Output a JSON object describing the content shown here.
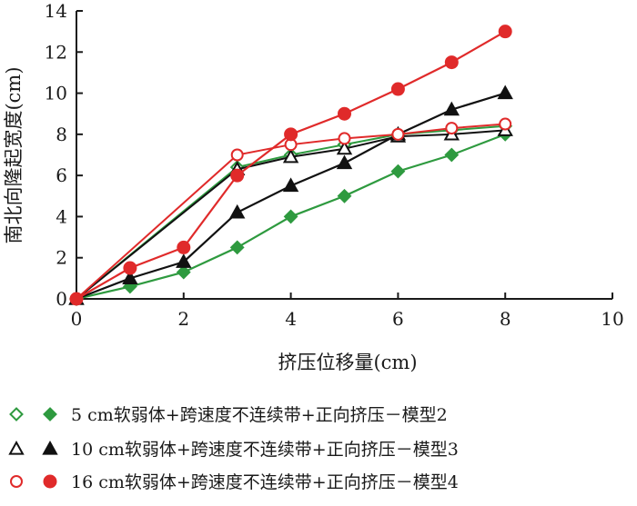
{
  "chart_data": {
    "type": "line",
    "xlabel": "挤压位移量(cm)",
    "ylabel": "南北向隆起宽度(cm)",
    "xlim": [
      0,
      10
    ],
    "ylim": [
      0,
      14
    ],
    "x_ticks": [
      "0",
      "2",
      "4",
      "6",
      "8",
      "10"
    ],
    "y_ticks": [
      "0",
      "2",
      "4",
      "6",
      "8",
      "10",
      "12",
      "14"
    ],
    "grid": false,
    "legend_position": "bottom",
    "series": [
      {
        "name": "5 cm软弱体+跨速度不连续带+正向挤压－模型2",
        "marker": "diamond",
        "color": "#2e9a3f",
        "open_points": [
          {
            "x": 0,
            "y": 0
          },
          {
            "x": 3,
            "y": 6.4
          },
          {
            "x": 4,
            "y": 7.0
          },
          {
            "x": 5,
            "y": 7.5
          },
          {
            "x": 6,
            "y": 8.0
          },
          {
            "x": 7,
            "y": 8.2
          },
          {
            "x": 8,
            "y": 8.4
          }
        ],
        "filled_points": [
          {
            "x": 0,
            "y": 0
          },
          {
            "x": 1,
            "y": 0.6
          },
          {
            "x": 2,
            "y": 1.3
          },
          {
            "x": 3,
            "y": 2.5
          },
          {
            "x": 4,
            "y": 4.0
          },
          {
            "x": 5,
            "y": 5.0
          },
          {
            "x": 6,
            "y": 6.2
          },
          {
            "x": 7,
            "y": 7.0
          },
          {
            "x": 8,
            "y": 8.0
          }
        ]
      },
      {
        "name": "10 cm软弱体+跨速度不连续带+正向挤压－模型3",
        "marker": "triangle",
        "color": "#111111",
        "open_points": [
          {
            "x": 0,
            "y": 0
          },
          {
            "x": 3,
            "y": 6.3
          },
          {
            "x": 4,
            "y": 6.9
          },
          {
            "x": 5,
            "y": 7.3
          },
          {
            "x": 6,
            "y": 7.9
          },
          {
            "x": 7,
            "y": 8.0
          },
          {
            "x": 8,
            "y": 8.2
          }
        ],
        "filled_points": [
          {
            "x": 0,
            "y": 0
          },
          {
            "x": 1,
            "y": 1.0
          },
          {
            "x": 2,
            "y": 1.8
          },
          {
            "x": 3,
            "y": 4.2
          },
          {
            "x": 4,
            "y": 5.5
          },
          {
            "x": 5,
            "y": 6.6
          },
          {
            "x": 6,
            "y": 8.0
          },
          {
            "x": 7,
            "y": 9.2
          },
          {
            "x": 8,
            "y": 10.0
          }
        ]
      },
      {
        "name": "16 cm软弱体+跨速度不连续带+正向挤压－模型4",
        "marker": "circle",
        "color": "#e02a2a",
        "open_points": [
          {
            "x": 0,
            "y": 0
          },
          {
            "x": 3,
            "y": 7.0
          },
          {
            "x": 4,
            "y": 7.5
          },
          {
            "x": 5,
            "y": 7.8
          },
          {
            "x": 6,
            "y": 8.0
          },
          {
            "x": 7,
            "y": 8.3
          },
          {
            "x": 8,
            "y": 8.5
          }
        ],
        "filled_points": [
          {
            "x": 0,
            "y": 0
          },
          {
            "x": 1,
            "y": 1.5
          },
          {
            "x": 2,
            "y": 2.5
          },
          {
            "x": 3,
            "y": 6.0
          },
          {
            "x": 4,
            "y": 8.0
          },
          {
            "x": 5,
            "y": 9.0
          },
          {
            "x": 6,
            "y": 10.2
          },
          {
            "x": 7,
            "y": 11.5
          },
          {
            "x": 8,
            "y": 13.0
          }
        ]
      }
    ]
  }
}
